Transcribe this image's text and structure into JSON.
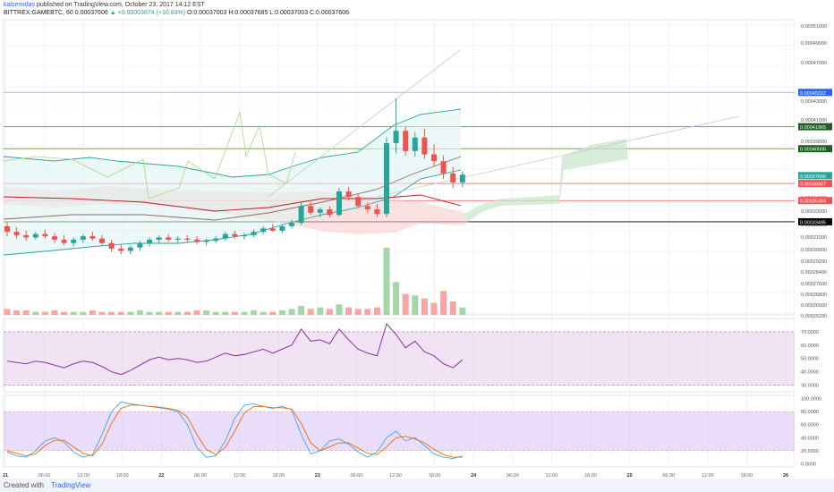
{
  "header": {
    "user": "kalsemidas",
    "published": " published on TradingView.com, October 23, 2017 14:12 EST"
  },
  "symbol_line": {
    "symbol": "BITTREX:GAMEBTC, 60",
    "last": "0.00037606",
    "change": "▲ +0.00003674 (+10.83%)",
    "ohlc": "O:0.00037003 H:0.00037685 L:0.00037003 C:0.00037606"
  },
  "colors": {
    "up": "#26a69a",
    "down": "#ef5350",
    "volume_up": "#a5d6a7",
    "volume_down": "#f7a5a5",
    "rsi_band": "#e1bee7",
    "rsi_line": "#7b1fa2",
    "stoch_k": "#42a5f5",
    "stoch_d": "#ef6c00",
    "accent": "#2962ff"
  },
  "price_axis": {
    "ticks": [
      "0.00051000",
      "0.00049000",
      "0.00047000",
      "0.00043000",
      "0.00041000",
      "0.00039000",
      "0.00034000",
      "0.00033000",
      "0.00032000",
      "0.00031000",
      "0.00030000",
      "0.00029200",
      "0.00028400",
      "0.00027600",
      "0.00026800",
      "0.00026000",
      "0.00025200"
    ],
    "markers": [
      {
        "label": "0.00045022",
        "color": "#2962ff"
      },
      {
        "label": "0.00041965",
        "color": "#1b5e20"
      },
      {
        "label": "0.00040006",
        "color": "#1b5e20"
      },
      {
        "label": "0.00037606",
        "color": "#26a69a"
      },
      {
        "label": "0.00036907",
        "color": "#ef5350"
      },
      {
        "label": "0.00035384",
        "color": "#ef5350"
      },
      {
        "label": "0.00033495",
        "color": "#000000"
      }
    ]
  },
  "rsi_axis": {
    "ticks": [
      "70.0000",
      "60.0000",
      "50.0000",
      "40.0000",
      "30.0000"
    ]
  },
  "stoch_axis": {
    "ticks": [
      "100.0000",
      "80.0000",
      "60.0000",
      "40.0000",
      "20.0000",
      "0.0000"
    ]
  },
  "time_axis": {
    "ticks": [
      "21",
      "06:00",
      "12:00",
      "18:00",
      "22",
      "06:00",
      "12:00",
      "18:00",
      "23",
      "06:00",
      "12:00",
      "18:00",
      "24",
      "06:00",
      "12:00",
      "18:00",
      "25",
      "06:00",
      "12:00",
      "18:00",
      "26"
    ]
  },
  "footer": {
    "created_with": "Created with",
    "brand": "TradingView"
  },
  "chart_data": {
    "type": "candlestick",
    "symbol": "BITTREX:GAMEBTC",
    "interval": "60",
    "ohlc": [
      [
        0.000331,
        0.000335,
        0.000322,
        0.000326
      ],
      [
        0.000326,
        0.00033,
        0.00032,
        0.000323
      ],
      [
        0.000323,
        0.000327,
        0.000318,
        0.000321
      ],
      [
        0.000321,
        0.000326,
        0.000319,
        0.000324
      ],
      [
        0.000324,
        0.000328,
        0.00032,
        0.000322
      ],
      [
        0.000322,
        0.000325,
        0.000316,
        0.000319
      ],
      [
        0.000319,
        0.000323,
        0.000314,
        0.000316
      ],
      [
        0.000316,
        0.000321,
        0.000313,
        0.000319
      ],
      [
        0.000319,
        0.000324,
        0.000316,
        0.000322
      ],
      [
        0.000322,
        0.000326,
        0.000318,
        0.00032
      ],
      [
        0.00032,
        0.000323,
        0.000314,
        0.000316
      ],
      [
        0.000316,
        0.000319,
        0.000308,
        0.000311
      ],
      [
        0.000311,
        0.000315,
        0.000306,
        0.000309
      ],
      [
        0.000309,
        0.000314,
        0.000306,
        0.000312
      ],
      [
        0.000312,
        0.000318,
        0.000309,
        0.000316
      ],
      [
        0.000316,
        0.000321,
        0.000313,
        0.000319
      ],
      [
        0.000319,
        0.000323,
        0.000316,
        0.000321
      ],
      [
        0.000321,
        0.000324,
        0.000317,
        0.000319
      ],
      [
        0.000319,
        0.000322,
        0.000316,
        0.00032
      ],
      [
        0.00032,
        0.000323,
        0.000317,
        0.000319
      ],
      [
        0.000319,
        0.000322,
        0.000315,
        0.000317
      ],
      [
        0.000317,
        0.00032,
        0.000314,
        0.000318
      ],
      [
        0.000318,
        0.000322,
        0.000316,
        0.00032
      ],
      [
        0.00032,
        0.000326,
        0.000318,
        0.000324
      ],
      [
        0.000324,
        0.000327,
        0.00032,
        0.000322
      ],
      [
        0.000322,
        0.000325,
        0.000319,
        0.000323
      ],
      [
        0.000323,
        0.000328,
        0.000321,
        0.000326
      ],
      [
        0.000326,
        0.000331,
        0.000324,
        0.000329
      ],
      [
        0.000329,
        0.000333,
        0.000326,
        0.000327
      ],
      [
        0.000327,
        0.000333,
        0.000325,
        0.000331
      ],
      [
        0.000331,
        0.000337,
        0.000329,
        0.000334
      ],
      [
        0.000334,
        0.000352,
        0.000332,
        0.000349
      ],
      [
        0.000349,
        0.000353,
        0.000341,
        0.000343
      ],
      [
        0.000343,
        0.000348,
        0.000339,
        0.000346
      ],
      [
        0.000346,
        0.000349,
        0.000339,
        0.000341
      ],
      [
        0.000341,
        0.000365,
        0.00034,
        0.000362
      ],
      [
        0.000362,
        0.000366,
        0.000354,
        0.000357
      ],
      [
        0.000357,
        0.00036,
        0.000347,
        0.000349
      ],
      [
        0.000349,
        0.000352,
        0.000343,
        0.000346
      ],
      [
        0.000346,
        0.000351,
        0.000339,
        0.000342
      ],
      [
        0.000342,
        0.00041,
        0.000339,
        0.000405
      ],
      [
        0.000405,
        0.000445,
        0.000396,
        0.000416
      ],
      [
        0.000416,
        0.00042,
        0.000394,
        0.000398
      ],
      [
        0.000398,
        0.000415,
        0.000393,
        0.00041
      ],
      [
        0.00041,
        0.000418,
        0.000391,
        0.000395
      ],
      [
        0.000395,
        0.000404,
        0.000384,
        0.000389
      ],
      [
        0.000389,
        0.000394,
        0.000373,
        0.000378
      ],
      [
        0.000378,
        0.000384,
        0.000365,
        0.00037
      ],
      [
        0.00037,
        0.00038,
        0.000366,
        0.000377
      ]
    ],
    "volume": [
      4,
      3,
      3,
      2,
      2,
      3,
      2,
      2,
      2,
      3,
      2,
      2,
      2,
      2,
      3,
      2,
      2,
      2,
      2,
      2,
      3,
      3,
      2,
      2,
      2,
      2,
      3,
      2,
      2,
      3,
      4,
      6,
      4,
      5,
      4,
      7,
      5,
      4,
      4,
      5,
      45,
      22,
      14,
      13,
      11,
      8,
      16,
      9,
      5
    ],
    "rsi": [
      48,
      47,
      46,
      48,
      47,
      45,
      43,
      46,
      48,
      47,
      44,
      40,
      38,
      41,
      45,
      49,
      51,
      49,
      50,
      49,
      47,
      48,
      51,
      54,
      52,
      53,
      55,
      57,
      54,
      57,
      60,
      72,
      63,
      64,
      61,
      72,
      64,
      57,
      54,
      52,
      76,
      68,
      58,
      63,
      55,
      52,
      46,
      43,
      49
    ],
    "stoch_k": [
      18,
      12,
      10,
      20,
      35,
      40,
      33,
      18,
      10,
      14,
      45,
      80,
      95,
      92,
      90,
      88,
      86,
      84,
      80,
      60,
      25,
      10,
      12,
      35,
      70,
      90,
      92,
      88,
      85,
      88,
      83,
      45,
      15,
      20,
      35,
      38,
      30,
      18,
      10,
      18,
      40,
      50,
      35,
      40,
      28,
      15,
      10,
      8,
      12
    ],
    "stoch_d": [
      20,
      16,
      12,
      15,
      28,
      36,
      36,
      26,
      16,
      12,
      30,
      62,
      85,
      90,
      90,
      88,
      87,
      85,
      82,
      72,
      45,
      22,
      14,
      25,
      50,
      78,
      88,
      88,
      86,
      86,
      84,
      62,
      32,
      20,
      26,
      32,
      32,
      24,
      16,
      14,
      26,
      40,
      42,
      38,
      32,
      22,
      14,
      10,
      10
    ],
    "rsi_band": [
      30,
      70
    ],
    "stoch_band": [
      20,
      80
    ]
  }
}
